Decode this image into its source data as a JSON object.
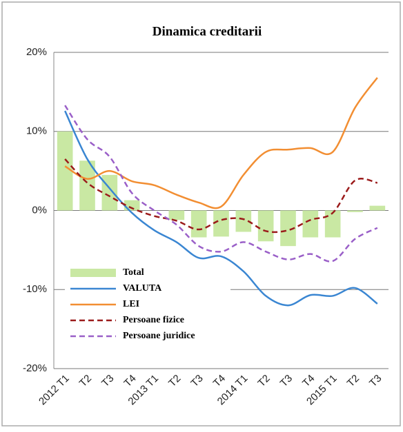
{
  "chart_data": {
    "type": "bar-line",
    "title": "Dinamica creditarii",
    "categories": [
      "2012 T1",
      "T2",
      "T3",
      "T4",
      "2013 T1",
      "T2",
      "T3",
      "T4",
      "2014 T1",
      "T2",
      "T3",
      "T4",
      "2015 T1",
      "T2",
      "T3"
    ],
    "series": [
      {
        "name": "Total",
        "type": "bar",
        "color": "#c9e8a3",
        "values": [
          10,
          6.3,
          4.5,
          1.3,
          0,
          -1.2,
          -3.4,
          -3.3,
          -2.7,
          -3.9,
          -4.5,
          -3.4,
          -3.4,
          -0.2,
          0.6
        ]
      },
      {
        "name": "VALUTA",
        "type": "line",
        "color": "#3a86d2",
        "dashed": false,
        "values": [
          12.6,
          6.5,
          2.8,
          -0.3,
          -2.5,
          -4.0,
          -6.0,
          -5.8,
          -7.7,
          -10.8,
          -12,
          -10.7,
          -10.8,
          -9.8,
          -11.8
        ]
      },
      {
        "name": "LEI",
        "type": "line",
        "color": "#f28e32",
        "dashed": false,
        "values": [
          5.6,
          4.0,
          5.0,
          3.7,
          3.2,
          2.0,
          1.0,
          0.5,
          4.5,
          7.4,
          7.7,
          7.9,
          7.4,
          13.0,
          16.8
        ]
      },
      {
        "name": "Persoane fizice",
        "type": "line",
        "color": "#9b1b1b",
        "dashed": true,
        "values": [
          6.5,
          3.5,
          1.8,
          0.3,
          -0.7,
          -1.3,
          -2.4,
          -1.2,
          -1.1,
          -2.6,
          -2.5,
          -1.2,
          -0.3,
          3.8,
          3.5
        ]
      },
      {
        "name": "Persoane juridice",
        "type": "line",
        "color": "#9a5fc8",
        "dashed": true,
        "values": [
          13.3,
          9.0,
          6.8,
          2.2,
          0.0,
          -1.8,
          -4.5,
          -5.2,
          -4.0,
          -5.2,
          -6.2,
          -5.5,
          -6.4,
          -3.6,
          -2.2
        ]
      }
    ],
    "ylim": [
      -20,
      20
    ],
    "yticks": [
      {
        "value": -20,
        "label": "-20%"
      },
      {
        "value": -10,
        "label": "-10%"
      },
      {
        "value": 0,
        "label": "0%"
      },
      {
        "value": 10,
        "label": "10%"
      },
      {
        "value": 20,
        "label": "20%"
      }
    ],
    "grid": true,
    "legend": "bottom-left"
  }
}
